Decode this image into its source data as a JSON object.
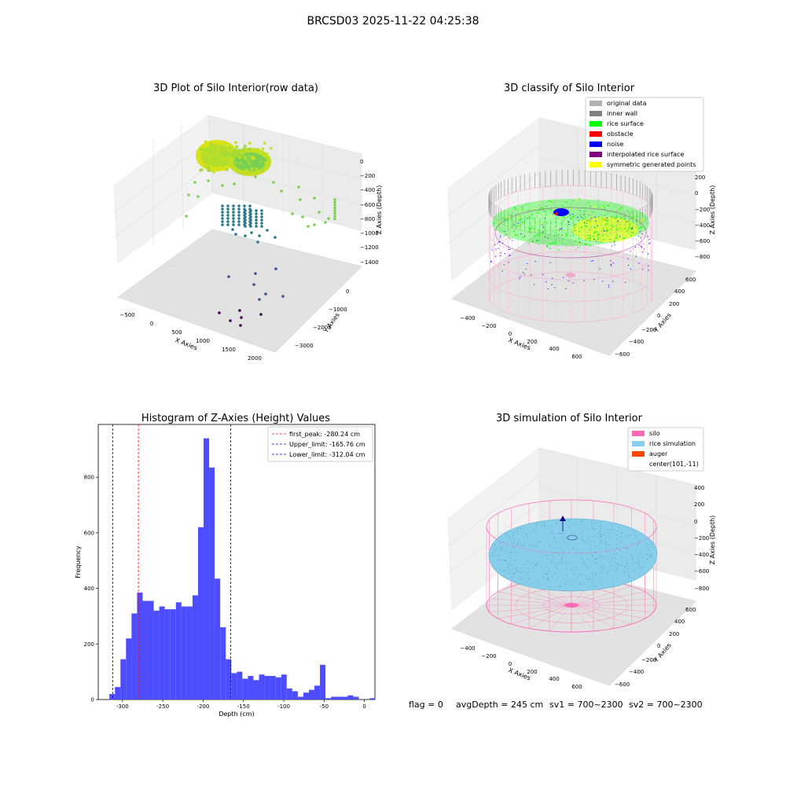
{
  "figure": {
    "suptitle": "BRCSD03 2025-11-22 04:25:38",
    "footer": {
      "flag": "flag = 0",
      "avg_depth": "avgDepth = 245 cm",
      "sv1": "sv1 = 700~2300",
      "sv2": "sv2 = 700~2300"
    }
  },
  "chart_data": [
    {
      "type": "scatter",
      "subtype": "3d-scatter",
      "title": "3D Plot of Silo Interior(row data)",
      "xlabel": "X Axies",
      "ylabel": "Y Axies",
      "zlabel": "Z Axies (Depth)",
      "x_ticks": [
        "−500",
        "0",
        "500",
        "1000",
        "1500",
        "2000"
      ],
      "y_ticks": [
        "−3000",
        "−2000",
        "−1000",
        "0"
      ],
      "z_ticks": [
        "0",
        "−200",
        "−400",
        "−600",
        "−800",
        "−1000",
        "−1200",
        "−1400"
      ],
      "colormap": "viridis",
      "cluster_colors": [
        "#c8e020",
        "#9fda3a",
        "#7ad151",
        "#2a788e",
        "#3b528b",
        "#440154"
      ]
    },
    {
      "type": "scatter",
      "subtype": "3d-classified",
      "title": "3D classify of Silo Interior",
      "xlabel": "X Axies",
      "ylabel": "Y Axies",
      "zlabel": "Z Axies (Depth)",
      "x_ticks": [
        "−400",
        "−200",
        "0",
        "200",
        "400",
        "600"
      ],
      "y_ticks": [
        "−600",
        "−400",
        "−200",
        "0",
        "200",
        "400",
        "600"
      ],
      "z_ticks": [
        "200",
        "0",
        "−200",
        "−400",
        "−600",
        "−800"
      ],
      "legend_position": "top-right",
      "legend": [
        {
          "label": "original data",
          "color": "#b0b0b0"
        },
        {
          "label": "inner wall",
          "color": "#808080"
        },
        {
          "label": "rice surface",
          "color": "#00ff00"
        },
        {
          "label": "obstacle",
          "color": "#ff0000"
        },
        {
          "label": "noise",
          "color": "#0000ff"
        },
        {
          "label": "interpolated rice surface",
          "color": "#800080"
        },
        {
          "label": "symmetric generated points",
          "color": "#ffff00"
        }
      ]
    },
    {
      "type": "bar",
      "subtype": "histogram",
      "title": "Histogram of Z-Axies (Height) Values",
      "xlabel": "Depth (cm)",
      "ylabel": "Frequency",
      "xlim": [
        -330,
        13
      ],
      "ylim": [
        0,
        990
      ],
      "x_ticks": [
        -300,
        -250,
        -200,
        -150,
        -100,
        -50,
        0
      ],
      "y_ticks": [
        0,
        200,
        400,
        600,
        800
      ],
      "bin_width": 6.87,
      "bin_start": -316.2,
      "bar_color": "#4d4dff",
      "frequencies": [
        20,
        45,
        145,
        220,
        310,
        385,
        355,
        355,
        320,
        335,
        325,
        325,
        350,
        335,
        335,
        375,
        620,
        940,
        835,
        435,
        260,
        145,
        95,
        100,
        75,
        85,
        70,
        90,
        85,
        85,
        80,
        90,
        40,
        30,
        10,
        25,
        35,
        50,
        125,
        5,
        10,
        10,
        10,
        15,
        10,
        0,
        0,
        5
      ],
      "vlines": [
        {
          "label": "first_peak: -280.24 cm",
          "value": -280.24,
          "color": "#ff0000"
        },
        {
          "label": "Upper_limit: -165.76 cm",
          "value": -165.76,
          "color": "#0000cc"
        },
        {
          "label": "Lower_limit: -312.04 cm",
          "value": -312.04,
          "color": "#0000cc"
        }
      ],
      "legend_position": "top-right"
    },
    {
      "type": "scatter",
      "subtype": "3d-simulation",
      "title": "3D simulation of Silo Interior",
      "xlabel": "X Axies",
      "ylabel": "Y Axies",
      "zlabel": "Z Axies (Depth)",
      "x_ticks": [
        "−400",
        "−200",
        "0",
        "200",
        "400",
        "600"
      ],
      "y_ticks": [
        "−600",
        "−400",
        "−200",
        "0",
        "200",
        "400",
        "600"
      ],
      "z_ticks": [
        "400",
        "200",
        "0",
        "−200",
        "−400",
        "−600",
        "−800"
      ],
      "legend_position": "top-right",
      "legend": [
        {
          "label": "silo",
          "color": "#ff69b4"
        },
        {
          "label": "rice simulation",
          "color": "#87ceeb"
        },
        {
          "label": "auger",
          "color": "#ff4500"
        },
        {
          "label": "center(101,-11)",
          "color": "none"
        }
      ]
    }
  ]
}
